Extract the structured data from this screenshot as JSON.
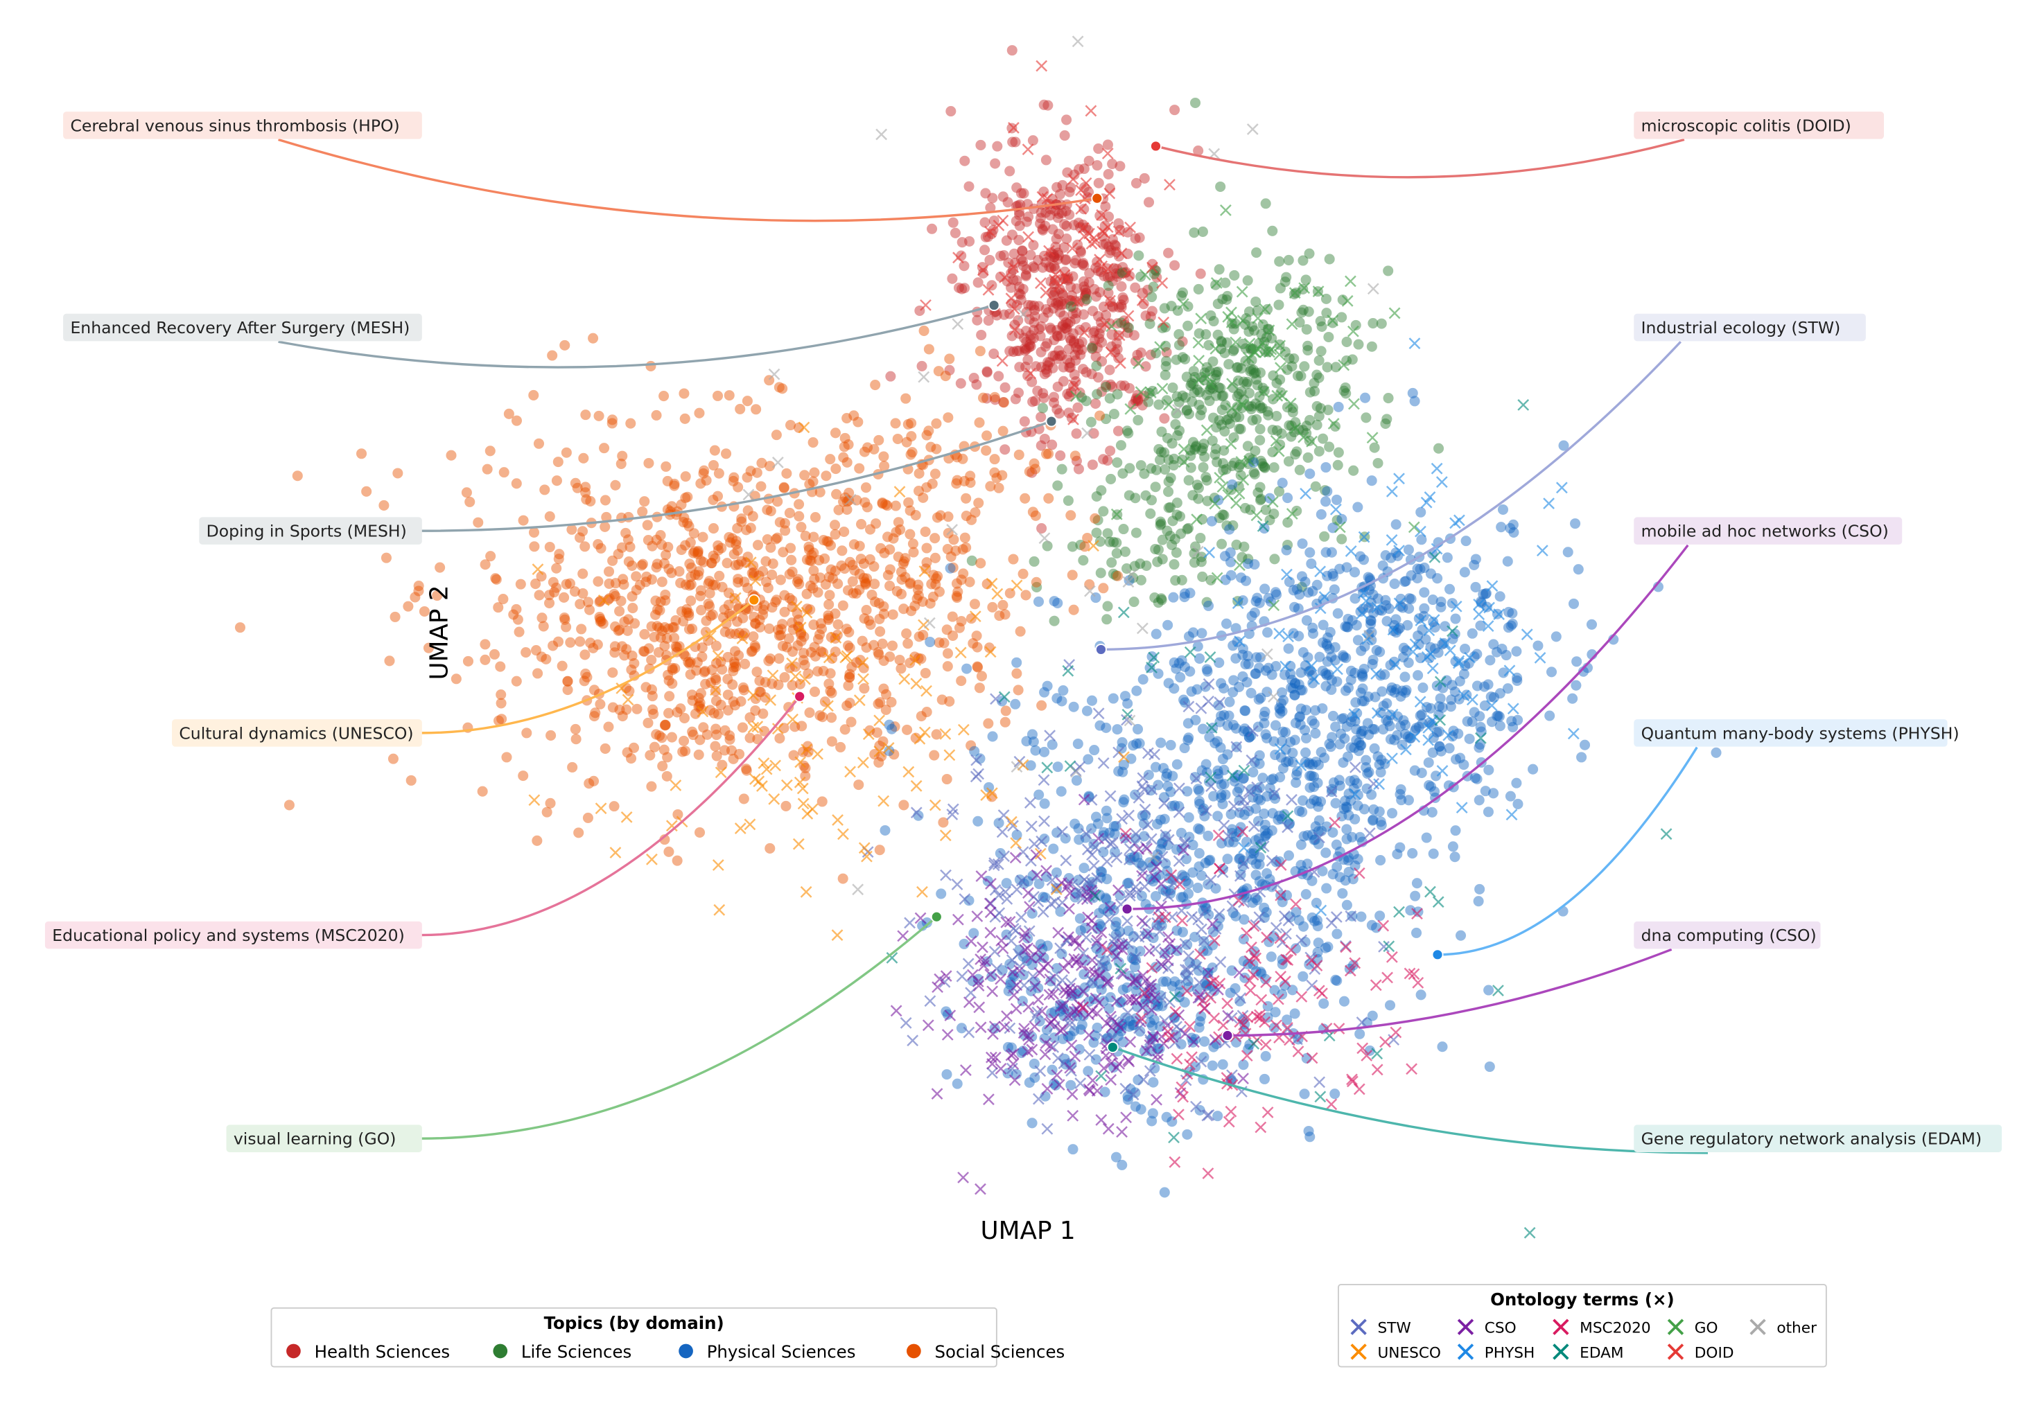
{
  "chart_data": {
    "type": "scatter",
    "title": "",
    "xlabel": "UMAP 1",
    "ylabel": "UMAP 2",
    "grid": false,
    "axis_ticks": false,
    "topic_legend": {
      "title": "Topics (by domain)",
      "placement": "bottom-left",
      "marker": "circle",
      "entries": [
        {
          "label": "Health Sciences",
          "color": "#c62828"
        },
        {
          "label": "Life Sciences",
          "color": "#2e7d32"
        },
        {
          "label": "Physical Sciences",
          "color": "#1565c0"
        },
        {
          "label": "Social Sciences",
          "color": "#e65100"
        }
      ]
    },
    "ontology_legend": {
      "title": "Ontology terms (×)",
      "placement": "bottom-right",
      "marker": "x",
      "entries": [
        {
          "label": "STW",
          "color": "#5c6bc0"
        },
        {
          "label": "CSO",
          "color": "#7b1fa2"
        },
        {
          "label": "MSC2020",
          "color": "#d81b60"
        },
        {
          "label": "GO",
          "color": "#43a047"
        },
        {
          "label": "other",
          "color": "#aaaaaa"
        },
        {
          "label": "UNESCO",
          "color": "#fb8c00"
        },
        {
          "label": "PHYSH",
          "color": "#1e88e5"
        },
        {
          "label": "EDAM",
          "color": "#00897b"
        },
        {
          "label": "DOID",
          "color": "#e53935"
        }
      ]
    },
    "annotations": [
      {
        "label": "Cerebral venous sinus thrombosis (HPO)",
        "side": "left",
        "color": "#f4845f",
        "bg": "#fde7e2",
        "dot": "#e65100"
      },
      {
        "label": "microscopic colitis (DOID)",
        "side": "right",
        "color": "#e57373",
        "bg": "#fbe3e3",
        "dot": "#e53935"
      },
      {
        "label": "Enhanced Recovery After Surgery (MESH)",
        "side": "left",
        "color": "#90a4ae",
        "bg": "#e8ebec",
        "dot": "#546e7a"
      },
      {
        "label": "Industrial ecology (STW)",
        "side": "right",
        "color": "#9fa8da",
        "bg": "#eaecf6",
        "dot": "#5c6bc0"
      },
      {
        "label": "Doping in Sports (MESH)",
        "side": "left",
        "color": "#90a4ae",
        "bg": "#e8ebec",
        "dot": "#546e7a"
      },
      {
        "label": "mobile ad hoc networks (CSO)",
        "side": "right",
        "color": "#ab47bc",
        "bg": "#f0e3f3",
        "dot": "#7b1fa2"
      },
      {
        "label": "Cultural dynamics (UNESCO)",
        "side": "left",
        "color": "#ffb74d",
        "bg": "#fff1df",
        "dot": "#fb8c00"
      },
      {
        "label": "Quantum many-body systems (PHYSH)",
        "side": "right",
        "color": "#64b5f6",
        "bg": "#e3f0fc",
        "dot": "#1e88e5"
      },
      {
        "label": "Educational policy and systems (MSC2020)",
        "side": "left",
        "color": "#e57399",
        "bg": "#fbe2ea",
        "dot": "#d81b60"
      },
      {
        "label": "dna computing (CSO)",
        "side": "right",
        "color": "#ab47bc",
        "bg": "#f0e3f3",
        "dot": "#7b1fa2"
      },
      {
        "label": "visual learning (GO)",
        "side": "left",
        "color": "#81c784",
        "bg": "#e6f3e6",
        "dot": "#43a047"
      },
      {
        "label": "Gene regulatory network analysis (EDAM)",
        "side": "right",
        "color": "#4db6ac",
        "bg": "#e0f2f0",
        "dot": "#00897b"
      }
    ]
  }
}
